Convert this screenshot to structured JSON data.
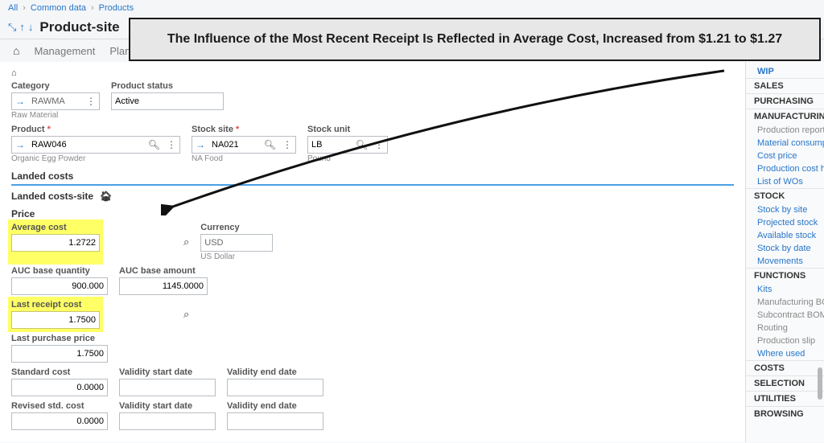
{
  "breadcrumb": {
    "a": "All",
    "b": "Common data",
    "c": "Products"
  },
  "page_title": "Product-site",
  "callout": "The Influence of the Most Recent Receipt Is Reflected in Average Cost, Increased from $1.21 to $1.27",
  "tabs": {
    "management": "Management",
    "plan_prefix": "Plan"
  },
  "fields": {
    "category": {
      "label": "Category",
      "value": "RAWMA",
      "sub": "Raw Material"
    },
    "status": {
      "label": "Product status",
      "value": "Active"
    },
    "product": {
      "label": "Product",
      "value": "RAW046",
      "sub": "Organic Egg Powder"
    },
    "site": {
      "label": "Stock site",
      "value": "NA021",
      "sub": "NA Food"
    },
    "unit": {
      "label": "Stock unit",
      "value": "LB",
      "sub": "Pound"
    }
  },
  "sections": {
    "landed": "Landed costs",
    "landed_site": "Landed costs-site",
    "price": "Price"
  },
  "price": {
    "avg_cost": {
      "label": "Average cost",
      "value": "1.2722"
    },
    "currency": {
      "label": "Currency",
      "value": "USD",
      "sub": "US Dollar"
    },
    "auc_qty": {
      "label": "AUC base quantity",
      "value": "900.000"
    },
    "auc_amt": {
      "label": "AUC base amount",
      "value": "1145.0000"
    },
    "last_receipt": {
      "label": "Last receipt cost",
      "value": "1.7500"
    },
    "last_purchase": {
      "label": "Last purchase price",
      "value": "1.7500"
    },
    "std_cost": {
      "label": "Standard cost",
      "value": "0.0000"
    },
    "rev_std": {
      "label": "Revised std. cost",
      "value": "0.0000"
    },
    "vstart": {
      "label": "Validity start date"
    },
    "vend": {
      "label": "Validity end date"
    }
  },
  "sidebar": {
    "wip": "WIP",
    "groups": [
      {
        "title": "SALES",
        "items": []
      },
      {
        "title": "PURCHASING",
        "items": []
      },
      {
        "title": "MANUFACTURING",
        "items": [
          {
            "label": "Production reportin",
            "muted": true
          },
          {
            "label": "Material consumpt"
          },
          {
            "label": "Cost price"
          },
          {
            "label": "Production cost his"
          },
          {
            "label": "List of WOs"
          }
        ]
      },
      {
        "title": "STOCK",
        "items": [
          {
            "label": "Stock by site"
          },
          {
            "label": "Projected stock"
          },
          {
            "label": "Available stock"
          },
          {
            "label": "Stock by date"
          },
          {
            "label": "Movements"
          }
        ]
      },
      {
        "title": "FUNCTIONS",
        "items": [
          {
            "label": "Kits"
          },
          {
            "label": "Manufacturing BOM",
            "muted": true
          },
          {
            "label": "Subcontract BOM",
            "muted": true
          },
          {
            "label": "Routing",
            "muted": true
          },
          {
            "label": "Production slip",
            "muted": true
          },
          {
            "label": "Where used"
          }
        ]
      },
      {
        "title": "COSTS",
        "items": []
      },
      {
        "title": "SELECTION",
        "items": []
      },
      {
        "title": "UTILITIES",
        "items": []
      },
      {
        "title": "BROWSING",
        "items": []
      }
    ]
  }
}
